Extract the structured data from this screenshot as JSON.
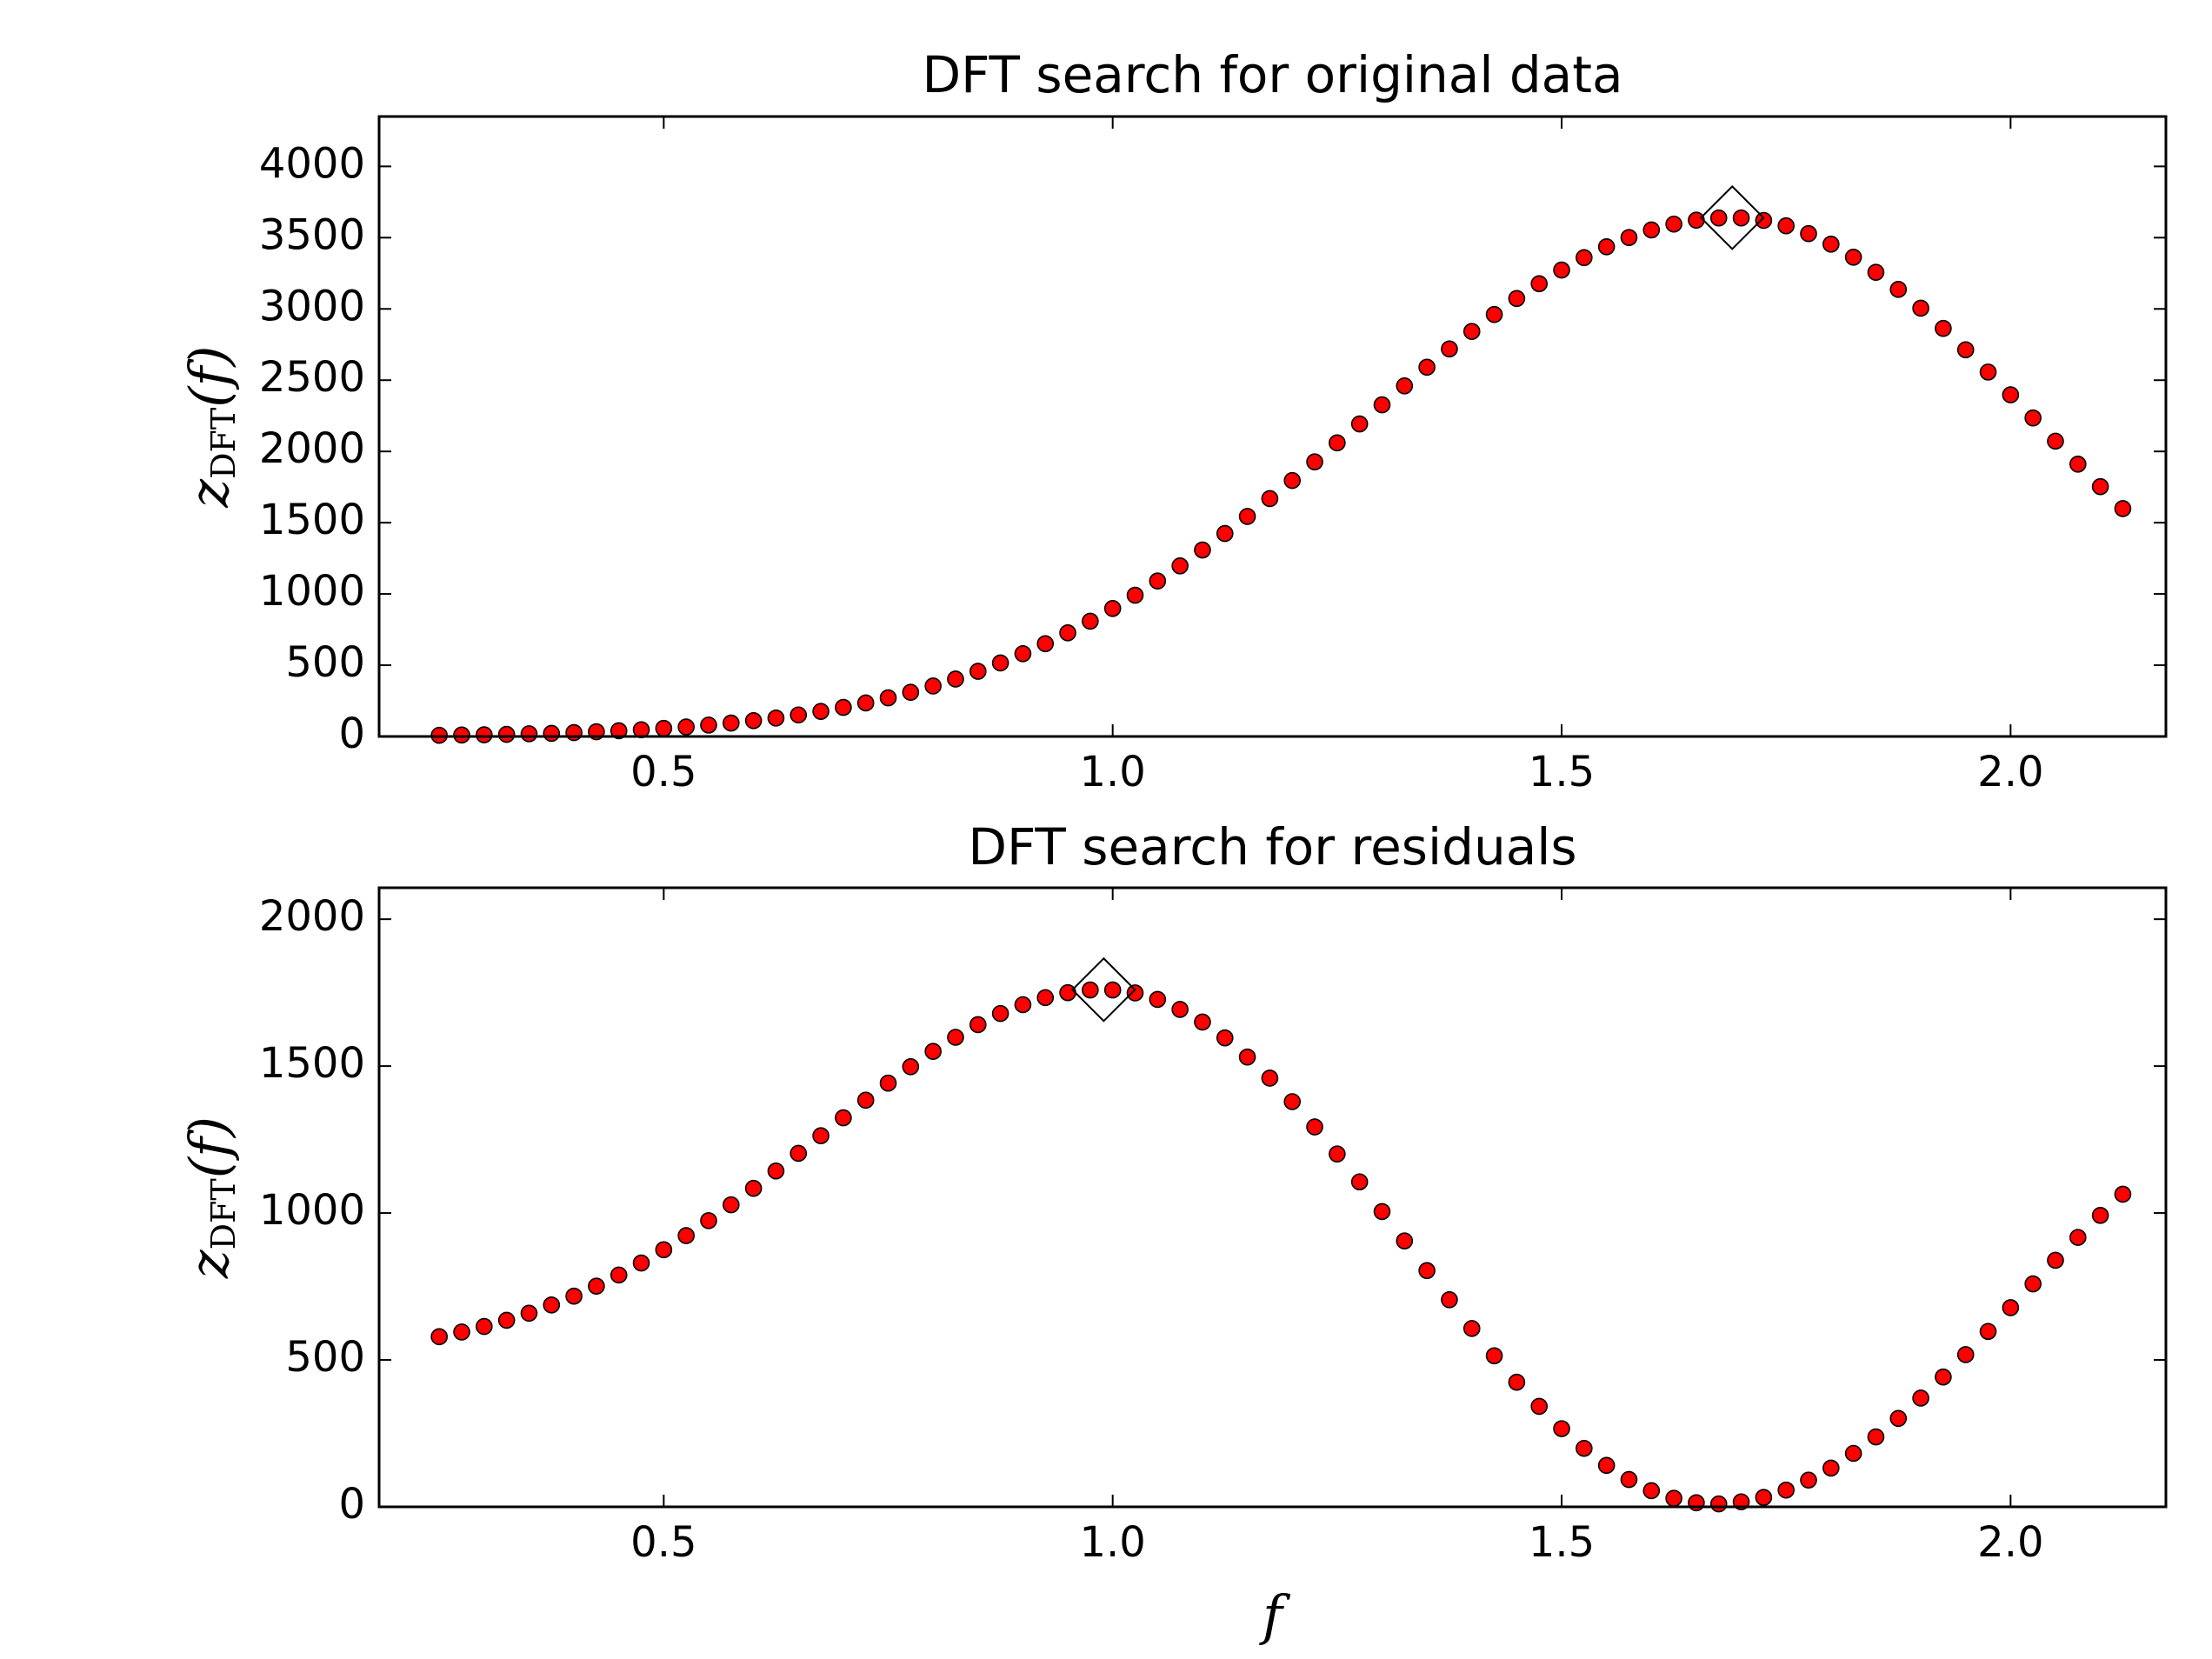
{
  "chart_data": [
    {
      "type": "scatter",
      "title": "DFT search for original data",
      "ylabel": [
        "z",
        "DFT",
        "(f)"
      ],
      "xlim": [
        0.183,
        2.173
      ],
      "ylim": [
        0,
        4350
      ],
      "xticks": [
        0.5,
        {
          "value": 1,
          "label": "1.0"
        },
        1.5,
        {
          "value": 2,
          "label": "2.0"
        }
      ],
      "yticks": [
        0,
        500,
        1000,
        1500,
        2000,
        2500,
        3000,
        3500,
        4000
      ],
      "series": [
        {
          "marker": "circle",
          "color": "#ff0000",
          "edgecolor": "#000000",
          "x": [
            0.25,
            0.275,
            0.3,
            0.325,
            0.35,
            0.375,
            0.4,
            0.425,
            0.45,
            0.475,
            0.5,
            0.525,
            0.55,
            0.575,
            0.6,
            0.625,
            0.65,
            0.675,
            0.7,
            0.725,
            0.75,
            0.775,
            0.8,
            0.825,
            0.85,
            0.875,
            0.9,
            0.925,
            0.95,
            0.975,
            1.0,
            1.025,
            1.05,
            1.075,
            1.1,
            1.125,
            1.15,
            1.175,
            1.2,
            1.225,
            1.25,
            1.275,
            1.3,
            1.325,
            1.35,
            1.375,
            1.4,
            1.425,
            1.45,
            1.475,
            1.5,
            1.525,
            1.55,
            1.575,
            1.6,
            1.625,
            1.65,
            1.675,
            1.7,
            1.725,
            1.75,
            1.775,
            1.8,
            1.825,
            1.85,
            1.875,
            1.9,
            1.925,
            1.95,
            1.975,
            2.0,
            2.025,
            2.05,
            2.075,
            2.1,
            2.125
          ],
          "values": [
            8,
            10,
            12,
            15,
            19,
            22,
            27,
            33,
            40,
            47,
            57,
            67,
            80,
            94,
            111,
            129,
            151,
            176,
            204,
            235,
            271,
            310,
            354,
            403,
            457,
            516,
            581,
            651,
            727,
            809,
            898,
            991,
            1091,
            1197,
            1308,
            1424,
            1544,
            1669,
            1796,
            1927,
            2060,
            2193,
            2327,
            2460,
            2591,
            2719,
            2842,
            2961,
            3073,
            3177,
            3273,
            3360,
            3436,
            3501,
            3554,
            3595,
            3623,
            3638,
            3638,
            3621,
            3583,
            3528,
            3454,
            3363,
            3257,
            3137,
            3005,
            2863,
            2713,
            2557,
            2397,
            2235,
            2072,
            1911,
            1753,
            1599
          ]
        },
        {
          "marker": "diamond",
          "color": "none",
          "edgecolor": "#000000",
          "x": [
            1.69
          ],
          "values": [
            3640
          ]
        }
      ]
    },
    {
      "type": "scatter",
      "title": "DFT search for residuals",
      "ylabel": [
        "z",
        "DFT",
        "(f)"
      ],
      "xlabel": "f",
      "xlim": [
        0.183,
        2.173
      ],
      "ylim": [
        0,
        2107
      ],
      "xticks": [
        0.5,
        {
          "value": 1,
          "label": "1.0"
        },
        1.5,
        {
          "value": 2,
          "label": "2.0"
        }
      ],
      "yticks": [
        0,
        500,
        1000,
        1500,
        2000
      ],
      "series": [
        {
          "marker": "circle",
          "color": "#ff0000",
          "edgecolor": "#000000",
          "x": [
            0.25,
            0.275,
            0.3,
            0.325,
            0.35,
            0.375,
            0.4,
            0.425,
            0.45,
            0.475,
            0.5,
            0.525,
            0.55,
            0.575,
            0.6,
            0.625,
            0.65,
            0.675,
            0.7,
            0.725,
            0.75,
            0.775,
            0.8,
            0.825,
            0.85,
            0.875,
            0.9,
            0.925,
            0.95,
            0.975,
            1.0,
            1.025,
            1.05,
            1.075,
            1.1,
            1.125,
            1.15,
            1.175,
            1.2,
            1.225,
            1.25,
            1.275,
            1.3,
            1.325,
            1.35,
            1.375,
            1.4,
            1.425,
            1.45,
            1.475,
            1.5,
            1.525,
            1.55,
            1.575,
            1.6,
            1.625,
            1.65,
            1.675,
            1.7,
            1.725,
            1.75,
            1.775,
            1.8,
            1.825,
            1.85,
            1.875,
            1.9,
            1.925,
            1.95,
            1.975,
            2.0,
            2.025,
            2.05,
            2.075,
            2.1,
            2.125
          ],
          "values": [
            579,
            595,
            614,
            635,
            659,
            687,
            717,
            751,
            789,
            830,
            875,
            923,
            974,
            1028,
            1084,
            1143,
            1203,
            1263,
            1324,
            1384,
            1442,
            1498,
            1550,
            1598,
            1641,
            1679,
            1709,
            1733,
            1750,
            1759,
            1759,
            1749,
            1727,
            1693,
            1650,
            1596,
            1531,
            1459,
            1379,
            1293,
            1201,
            1106,
            1005,
            905,
            804,
            705,
            607,
            514,
            424,
            342,
            266,
            199,
            141,
            93,
            55,
            29,
            14,
            10,
            17,
            32,
            57,
            91,
            132,
            182,
            238,
            301,
            370,
            442,
            518,
            597,
            678,
            759,
            839,
            917,
            992,
            1064
          ]
        },
        {
          "marker": "diamond",
          "color": "none",
          "edgecolor": "#000000",
          "x": [
            0.99
          ],
          "values": [
            1760
          ]
        }
      ]
    }
  ]
}
